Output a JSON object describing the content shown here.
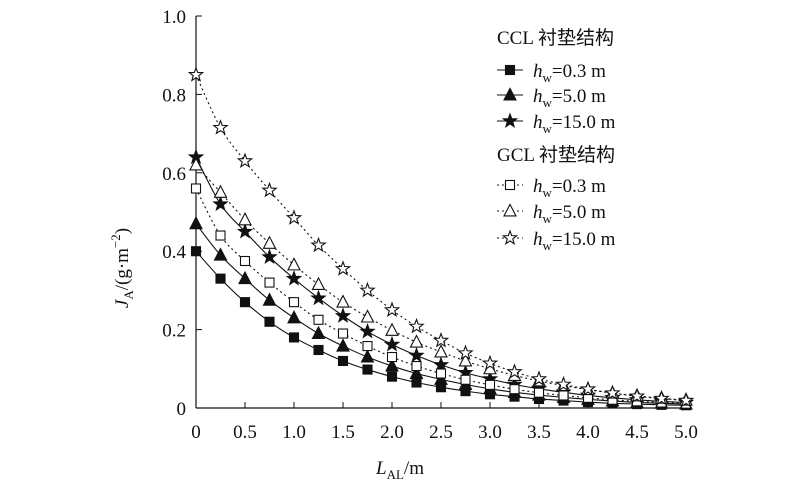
{
  "chart_data": {
    "type": "line",
    "xlabel": {
      "main": "L",
      "sub": "AL",
      "unit": "/m"
    },
    "ylabel": {
      "main": "J",
      "sub": "A",
      "unit_pre": "/(g·m",
      "unit_sup": "−2",
      "unit_post": ")"
    },
    "xlim": [
      0,
      5.0
    ],
    "ylim": [
      0,
      1.0
    ],
    "x_ticks": [
      "0",
      "0.5",
      "1.0",
      "1.5",
      "2.0",
      "2.5",
      "3.0",
      "3.5",
      "4.0",
      "4.5",
      "5.0"
    ],
    "y_ticks": [
      "0",
      "0.2",
      "0.4",
      "0.6",
      "0.8",
      "1.0"
    ],
    "x": [
      0,
      0.25,
      0.5,
      0.75,
      1.0,
      1.25,
      1.5,
      1.75,
      2.0,
      2.25,
      2.5,
      2.75,
      3.0,
      3.25,
      3.5,
      3.75,
      4.0,
      4.25,
      4.5,
      4.75,
      5.0
    ],
    "legend_groups": [
      {
        "title": "CCL 衬垫结构",
        "series_indices": [
          0,
          1,
          2
        ]
      },
      {
        "title": "GCL 衬垫结构",
        "series_indices": [
          3,
          4,
          5
        ]
      }
    ],
    "series": [
      {
        "name": "hw=0.3 m",
        "h_label": "h",
        "h_sub": "w",
        "h_value": "=0.3 m",
        "marker": "square",
        "fill": true,
        "line": "solid",
        "values": [
          0.4,
          0.33,
          0.27,
          0.22,
          0.18,
          0.148,
          0.12,
          0.098,
          0.08,
          0.065,
          0.053,
          0.043,
          0.035,
          0.029,
          0.023,
          0.019,
          0.015,
          0.012,
          0.01,
          0.008,
          0.007
        ]
      },
      {
        "name": "hw=5.0 m",
        "h_label": "h",
        "h_sub": "w",
        "h_value": "=5.0 m",
        "marker": "triangle",
        "fill": true,
        "line": "solid",
        "values": [
          0.47,
          0.39,
          0.33,
          0.275,
          0.23,
          0.19,
          0.158,
          0.13,
          0.107,
          0.088,
          0.073,
          0.06,
          0.049,
          0.04,
          0.033,
          0.027,
          0.022,
          0.018,
          0.014,
          0.012,
          0.01
        ]
      },
      {
        "name": "hw=15.0 m",
        "h_label": "h",
        "h_sub": "w",
        "h_value": "=15.0 m",
        "marker": "star",
        "fill": true,
        "line": "solid",
        "values": [
          0.64,
          0.52,
          0.45,
          0.385,
          0.33,
          0.28,
          0.235,
          0.195,
          0.162,
          0.134,
          0.11,
          0.09,
          0.074,
          0.06,
          0.049,
          0.04,
          0.032,
          0.026,
          0.021,
          0.017,
          0.014
        ]
      },
      {
        "name": "hw=0.3 m",
        "h_label": "h",
        "h_sub": "w",
        "h_value": "=0.3 m",
        "marker": "square",
        "fill": false,
        "line": "dotted",
        "values": [
          0.56,
          0.44,
          0.375,
          0.32,
          0.27,
          0.225,
          0.19,
          0.158,
          0.13,
          0.107,
          0.088,
          0.072,
          0.059,
          0.048,
          0.039,
          0.032,
          0.026,
          0.021,
          0.017,
          0.014,
          0.011
        ]
      },
      {
        "name": "hw=5.0 m",
        "h_label": "h",
        "h_sub": "w",
        "h_value": "=5.0 m",
        "marker": "triangle",
        "fill": false,
        "line": "dotted",
        "values": [
          0.62,
          0.55,
          0.48,
          0.42,
          0.365,
          0.315,
          0.27,
          0.232,
          0.198,
          0.168,
          0.143,
          0.12,
          0.1,
          0.083,
          0.069,
          0.057,
          0.047,
          0.038,
          0.031,
          0.025,
          0.02
        ]
      },
      {
        "name": "hw=15.0 m",
        "h_label": "h",
        "h_sub": "w",
        "h_value": "=15.0 m",
        "marker": "star",
        "fill": false,
        "line": "dotted",
        "values": [
          0.85,
          0.715,
          0.63,
          0.555,
          0.485,
          0.415,
          0.355,
          0.3,
          0.25,
          0.208,
          0.172,
          0.14,
          0.114,
          0.092,
          0.074,
          0.06,
          0.048,
          0.038,
          0.03,
          0.024,
          0.019
        ]
      }
    ],
    "legend_position": "top-right",
    "grid": false,
    "colors": {
      "stroke": "#111111",
      "background": "#ffffff"
    }
  }
}
